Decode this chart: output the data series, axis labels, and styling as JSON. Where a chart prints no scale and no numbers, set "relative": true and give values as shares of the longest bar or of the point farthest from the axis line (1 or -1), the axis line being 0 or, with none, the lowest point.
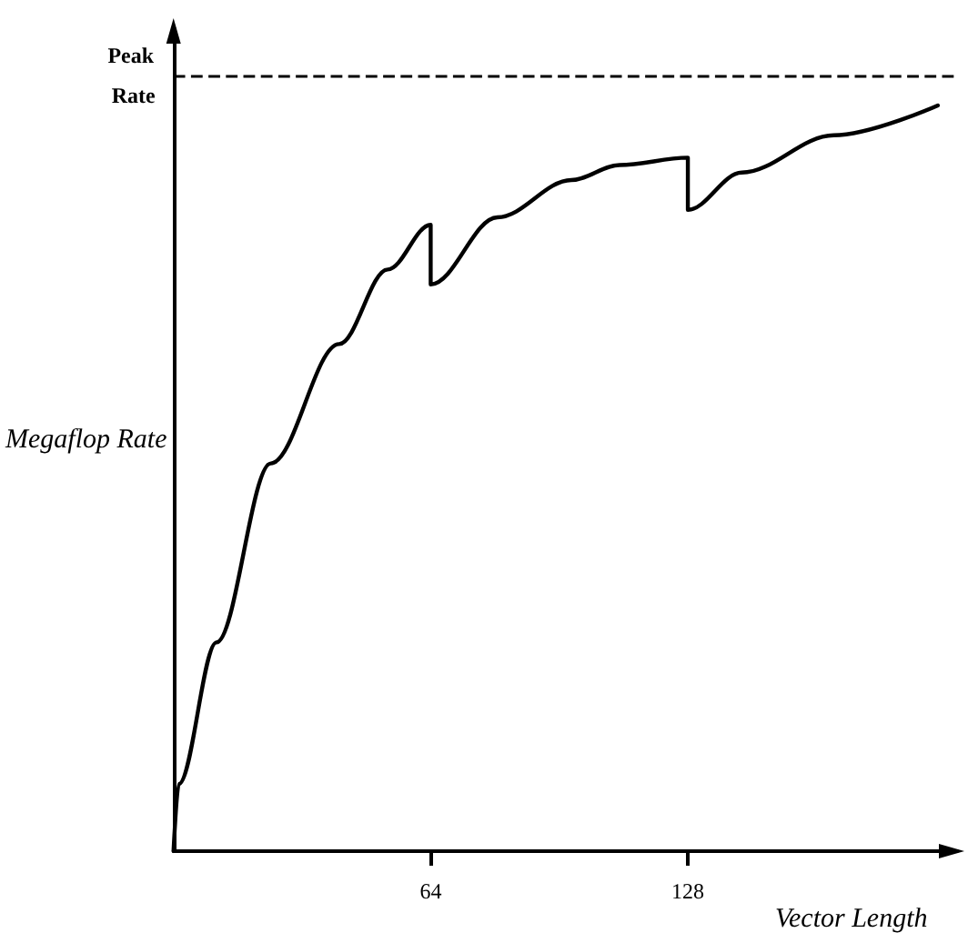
{
  "chart_data": {
    "type": "line",
    "relative": true,
    "xlabel": "Vector Length",
    "ylabel": "Megaflop Rate",
    "xlim": [
      0,
      195
    ],
    "xticks": [
      64,
      128
    ],
    "grid": false,
    "x": [
      0,
      1.3,
      10.7,
      24.2,
      41.2,
      53.3,
      64,
      64,
      80.6,
      99,
      111,
      128,
      128,
      141.4,
      164.3,
      190.2
    ],
    "series": [
      {
        "color": "#000000",
        "values": [
          0,
          0.09,
          0.28,
          0.52,
          0.68,
          0.78,
          0.84,
          0.76,
          0.85,
          0.9,
          0.92,
          0.93,
          0.86,
          0.91,
          0.96,
          1.0
        ]
      }
    ],
    "ref_lines": [
      {
        "axis": "y",
        "value": 1.04,
        "label": "Peak Rate",
        "color": "#000000",
        "line_style": "dashed"
      }
    ]
  }
}
